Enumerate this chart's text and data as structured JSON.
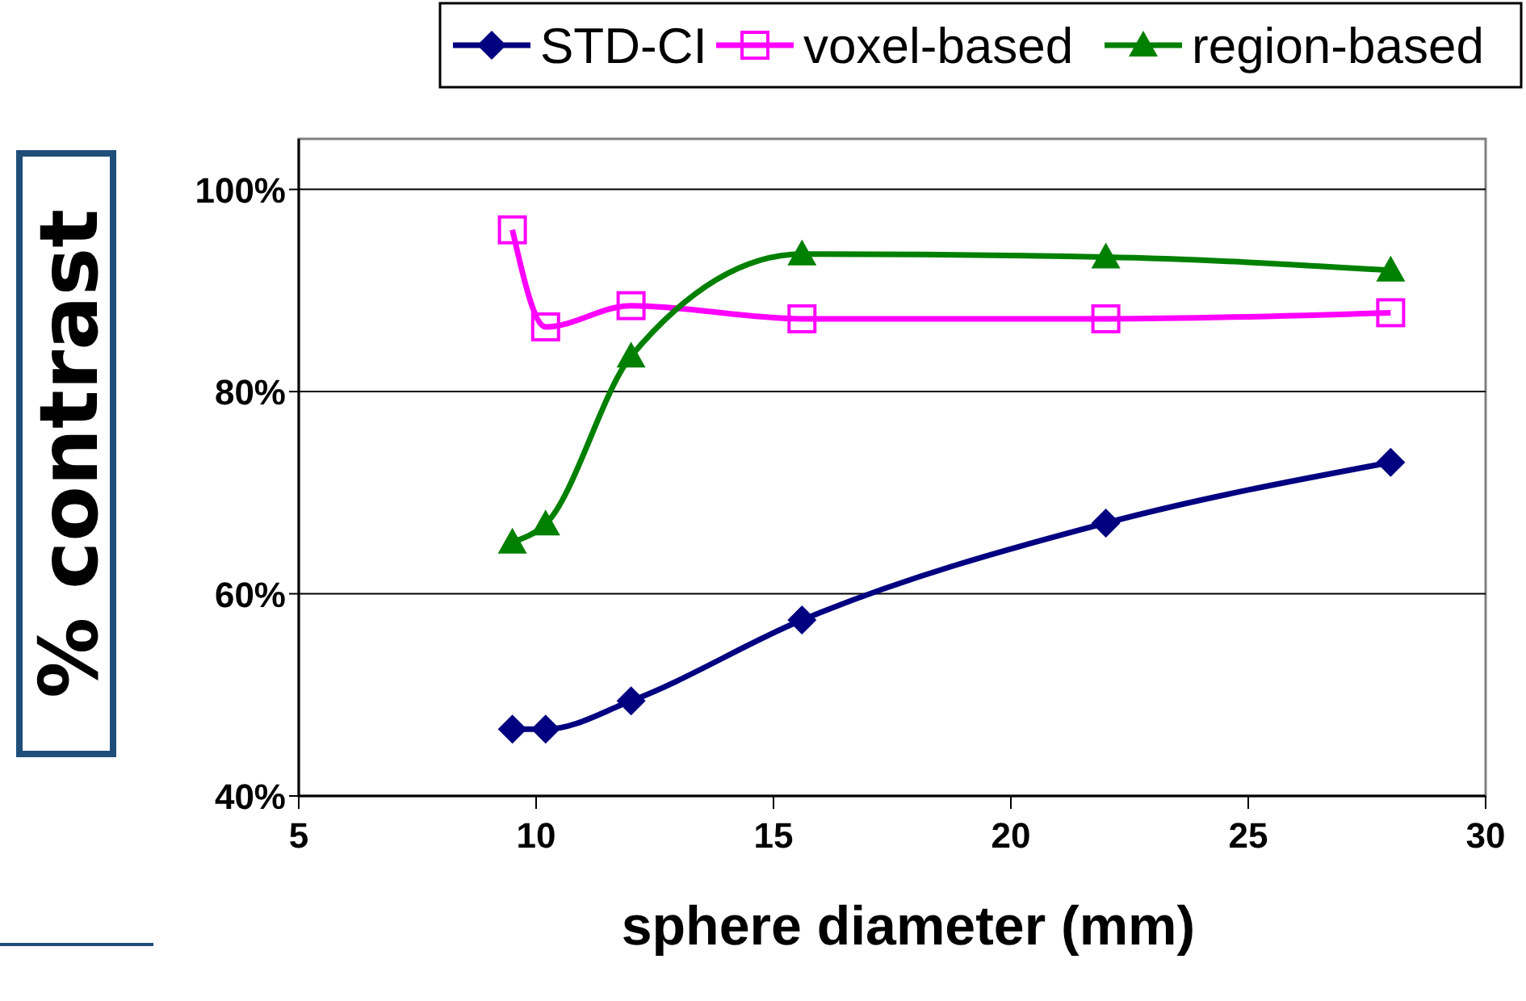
{
  "chart_data": {
    "type": "line",
    "xlabel": "sphere diameter (mm)",
    "ylabel": "% contrast",
    "x": [
      9.5,
      10.2,
      12,
      15.6,
      22,
      28
    ],
    "series": [
      {
        "name": "STD-CI",
        "color": "#000080",
        "marker": "diamond",
        "values": [
          46.6,
          46.6,
          49.4,
          57.4,
          67,
          73
        ]
      },
      {
        "name": "voxel-based",
        "color": "#ff00ff",
        "marker": "square",
        "values": [
          96,
          86.4,
          88.5,
          87.2,
          87.2,
          87.8
        ]
      },
      {
        "name": "region-based",
        "color": "#008000",
        "marker": "triangle",
        "values": [
          65.1,
          66.9,
          83.5,
          93.6,
          93.3,
          92
        ]
      }
    ],
    "xlim": [
      5,
      30
    ],
    "xticks": [
      5,
      10,
      15,
      20,
      25,
      30
    ],
    "ylim": [
      40,
      105
    ],
    "yticks": [
      {
        "value": 40,
        "label": "40%"
      },
      {
        "value": 60,
        "label": "60%"
      },
      {
        "value": 80,
        "label": "80%"
      },
      {
        "value": 100,
        "label": "100%"
      }
    ],
    "grid": "y",
    "legend": "top right",
    "line_style": "solid"
  }
}
